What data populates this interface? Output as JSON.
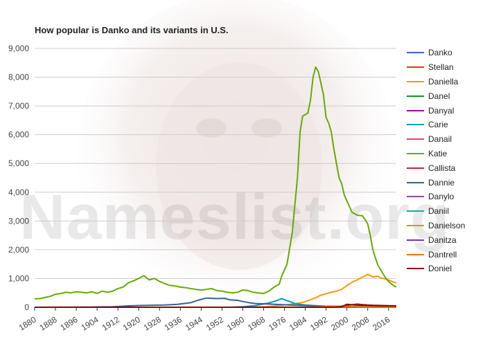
{
  "watermark": {
    "text": "Nameslist.org"
  },
  "chart_data": {
    "type": "line",
    "title": "How popular is Danko and its variants in U.S.",
    "xlabel": "",
    "ylabel": "",
    "xlim": [
      1880,
      2019
    ],
    "ylim": [
      0,
      9000
    ],
    "y_ticks": [
      0,
      1000,
      2000,
      3000,
      4000,
      5000,
      6000,
      7000,
      8000,
      9000
    ],
    "y_tick_labels": [
      "0",
      "1,000",
      "2,000",
      "3,000",
      "4,000",
      "5,000",
      "6,000",
      "7,000",
      "8,000",
      "9,000"
    ],
    "x_ticks": [
      1880,
      1888,
      1896,
      1904,
      1912,
      1920,
      1928,
      1936,
      1944,
      1952,
      1960,
      1968,
      1976,
      1984,
      1992,
      2000,
      2008,
      2016
    ],
    "x_tick_labels": [
      "1880",
      "1888",
      "1896",
      "1904",
      "1912",
      "1920",
      "1928",
      "1936",
      "1944",
      "1952",
      "1960",
      "1968",
      "1976",
      "1984",
      "1992",
      "2000",
      "2008",
      "2016"
    ],
    "grid": true,
    "legend_position": "right",
    "series": [
      {
        "name": "Danko",
        "color": "#3366cc",
        "points": [
          [
            1880,
            0
          ],
          [
            2019,
            0
          ]
        ]
      },
      {
        "name": "Stellan",
        "color": "#dc3912",
        "points": [
          [
            1880,
            0
          ],
          [
            2019,
            0
          ]
        ]
      },
      {
        "name": "Daniella",
        "color": "#ff9900",
        "points": [
          [
            1880,
            0
          ],
          [
            1958,
            0
          ],
          [
            1962,
            5
          ],
          [
            1968,
            15
          ],
          [
            1972,
            40
          ],
          [
            1976,
            80
          ],
          [
            1980,
            120
          ],
          [
            1983,
            170
          ],
          [
            1986,
            260
          ],
          [
            1988,
            330
          ],
          [
            1990,
            420
          ],
          [
            1992,
            470
          ],
          [
            1994,
            520
          ],
          [
            1996,
            560
          ],
          [
            1998,
            620
          ],
          [
            2000,
            750
          ],
          [
            2002,
            870
          ],
          [
            2004,
            950
          ],
          [
            2006,
            1050
          ],
          [
            2008,
            1150
          ],
          [
            2009,
            1100
          ],
          [
            2010,
            1050
          ],
          [
            2012,
            1080
          ],
          [
            2013,
            1020
          ],
          [
            2014,
            1000
          ],
          [
            2016,
            950
          ],
          [
            2018,
            870
          ],
          [
            2019,
            850
          ]
        ]
      },
      {
        "name": "Danel",
        "color": "#109618",
        "points": [
          [
            1880,
            0
          ],
          [
            2019,
            0
          ]
        ]
      },
      {
        "name": "Danyal",
        "color": "#990099",
        "points": [
          [
            1880,
            0
          ],
          [
            2019,
            0
          ]
        ]
      },
      {
        "name": "Carie",
        "color": "#0099c6",
        "points": [
          [
            1880,
            0
          ],
          [
            1955,
            0
          ],
          [
            1960,
            20
          ],
          [
            1965,
            60
          ],
          [
            1970,
            150
          ],
          [
            1973,
            230
          ],
          [
            1975,
            300
          ],
          [
            1977,
            230
          ],
          [
            1980,
            130
          ],
          [
            1984,
            80
          ],
          [
            1990,
            40
          ],
          [
            1995,
            20
          ],
          [
            2000,
            10
          ],
          [
            2010,
            5
          ],
          [
            2019,
            5
          ]
        ]
      },
      {
        "name": "Danail",
        "color": "#dd4477",
        "points": [
          [
            1880,
            0
          ],
          [
            2019,
            0
          ]
        ]
      },
      {
        "name": "Katie",
        "color": "#66aa00",
        "points": [
          [
            1880,
            290
          ],
          [
            1882,
            300
          ],
          [
            1884,
            340
          ],
          [
            1886,
            380
          ],
          [
            1888,
            450
          ],
          [
            1890,
            480
          ],
          [
            1892,
            520
          ],
          [
            1894,
            500
          ],
          [
            1896,
            540
          ],
          [
            1898,
            520
          ],
          [
            1900,
            500
          ],
          [
            1902,
            540
          ],
          [
            1904,
            480
          ],
          [
            1906,
            560
          ],
          [
            1908,
            520
          ],
          [
            1910,
            560
          ],
          [
            1912,
            650
          ],
          [
            1914,
            700
          ],
          [
            1916,
            850
          ],
          [
            1918,
            920
          ],
          [
            1920,
            1000
          ],
          [
            1922,
            1100
          ],
          [
            1924,
            950
          ],
          [
            1926,
            1000
          ],
          [
            1928,
            900
          ],
          [
            1930,
            820
          ],
          [
            1932,
            760
          ],
          [
            1934,
            740
          ],
          [
            1936,
            700
          ],
          [
            1938,
            680
          ],
          [
            1940,
            650
          ],
          [
            1942,
            620
          ],
          [
            1944,
            600
          ],
          [
            1946,
            620
          ],
          [
            1948,
            650
          ],
          [
            1950,
            580
          ],
          [
            1952,
            560
          ],
          [
            1954,
            520
          ],
          [
            1956,
            500
          ],
          [
            1958,
            520
          ],
          [
            1960,
            600
          ],
          [
            1962,
            580
          ],
          [
            1964,
            520
          ],
          [
            1966,
            500
          ],
          [
            1968,
            480
          ],
          [
            1970,
            560
          ],
          [
            1972,
            700
          ],
          [
            1974,
            800
          ],
          [
            1975,
            1100
          ],
          [
            1977,
            1500
          ],
          [
            1979,
            2600
          ],
          [
            1981,
            4500
          ],
          [
            1982,
            6100
          ],
          [
            1983,
            6650
          ],
          [
            1985,
            6750
          ],
          [
            1986,
            7200
          ],
          [
            1987,
            8000
          ],
          [
            1988,
            8350
          ],
          [
            1989,
            8200
          ],
          [
            1990,
            7800
          ],
          [
            1991,
            7400
          ],
          [
            1992,
            6600
          ],
          [
            1993,
            6400
          ],
          [
            1994,
            6100
          ],
          [
            1995,
            5500
          ],
          [
            1996,
            5000
          ],
          [
            1997,
            4500
          ],
          [
            1998,
            4300
          ],
          [
            1999,
            3900
          ],
          [
            2000,
            3700
          ],
          [
            2001,
            3500
          ],
          [
            2002,
            3300
          ],
          [
            2003,
            3250
          ],
          [
            2004,
            3200
          ],
          [
            2006,
            3180
          ],
          [
            2007,
            3050
          ],
          [
            2008,
            2900
          ],
          [
            2009,
            2500
          ],
          [
            2010,
            2000
          ],
          [
            2011,
            1700
          ],
          [
            2012,
            1450
          ],
          [
            2013,
            1300
          ],
          [
            2014,
            1150
          ],
          [
            2015,
            1000
          ],
          [
            2016,
            900
          ],
          [
            2017,
            820
          ],
          [
            2018,
            750
          ],
          [
            2019,
            700
          ]
        ]
      },
      {
        "name": "Callista",
        "color": "#b82e2e",
        "points": [
          [
            1880,
            0
          ],
          [
            1990,
            0
          ],
          [
            1996,
            20
          ],
          [
            2000,
            60
          ],
          [
            2002,
            90
          ],
          [
            2004,
            110
          ],
          [
            2006,
            95
          ],
          [
            2008,
            80
          ],
          [
            2010,
            70
          ],
          [
            2012,
            65
          ],
          [
            2014,
            60
          ],
          [
            2016,
            55
          ],
          [
            2019,
            50
          ]
        ]
      },
      {
        "name": "Dannie",
        "color": "#316395",
        "points": [
          [
            1880,
            0
          ],
          [
            1900,
            5
          ],
          [
            1910,
            20
          ],
          [
            1915,
            40
          ],
          [
            1920,
            60
          ],
          [
            1925,
            70
          ],
          [
            1930,
            80
          ],
          [
            1935,
            100
          ],
          [
            1940,
            160
          ],
          [
            1943,
            250
          ],
          [
            1946,
            320
          ],
          [
            1950,
            300
          ],
          [
            1953,
            310
          ],
          [
            1955,
            260
          ],
          [
            1958,
            240
          ],
          [
            1960,
            200
          ],
          [
            1963,
            150
          ],
          [
            1965,
            130
          ],
          [
            1970,
            110
          ],
          [
            1975,
            90
          ],
          [
            1980,
            70
          ],
          [
            1985,
            55
          ],
          [
            1990,
            40
          ],
          [
            2000,
            25
          ],
          [
            2010,
            15
          ],
          [
            2019,
            10
          ]
        ]
      },
      {
        "name": "Danylo",
        "color": "#994499",
        "points": [
          [
            1880,
            0
          ],
          [
            2019,
            0
          ]
        ]
      },
      {
        "name": "Daniil",
        "color": "#22aa99",
        "points": [
          [
            1880,
            0
          ],
          [
            2019,
            0
          ]
        ]
      },
      {
        "name": "Danielson",
        "color": "#aaaa11",
        "points": [
          [
            1880,
            0
          ],
          [
            2019,
            0
          ]
        ]
      },
      {
        "name": "Danitza",
        "color": "#6633cc",
        "points": [
          [
            1880,
            0
          ],
          [
            2019,
            0
          ]
        ]
      },
      {
        "name": "Dantrell",
        "color": "#e67300",
        "points": [
          [
            1880,
            0
          ],
          [
            1985,
            0
          ],
          [
            1990,
            20
          ],
          [
            1993,
            40
          ],
          [
            1996,
            35
          ],
          [
            2000,
            20
          ],
          [
            2005,
            10
          ],
          [
            2019,
            5
          ]
        ]
      },
      {
        "name": "Doniel",
        "color": "#8b0707",
        "points": [
          [
            1880,
            0
          ],
          [
            1995,
            0
          ],
          [
            1998,
            20
          ],
          [
            2000,
            100
          ],
          [
            2003,
            80
          ],
          [
            2006,
            70
          ],
          [
            2010,
            60
          ],
          [
            2014,
            50
          ],
          [
            2019,
            45
          ]
        ]
      }
    ]
  }
}
